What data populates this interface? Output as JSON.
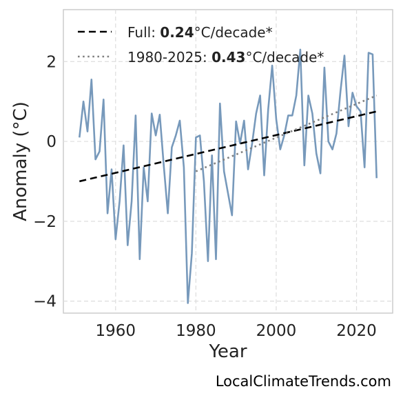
{
  "chart_data": {
    "type": "line",
    "xlabel": "Year",
    "ylabel": "Anomaly (°C)",
    "xlim": [
      1947,
      2029
    ],
    "ylim": [
      -4.3,
      3.3
    ],
    "x_ticks": [
      1960,
      1980,
      2000,
      2020
    ],
    "y_ticks": [
      -4,
      -2,
      0,
      2
    ],
    "y_tick_labels": [
      "−4",
      "−2",
      "0",
      "2"
    ],
    "grid": true,
    "legend_position": "top-left",
    "series": [
      {
        "x": [
          1951,
          1952,
          1953,
          1954,
          1955,
          1956,
          1957,
          1958,
          1959,
          1960,
          1961,
          1962,
          1963,
          1964,
          1965,
          1966,
          1967,
          1968,
          1969,
          1970,
          1971,
          1972,
          1973,
          1974,
          1975,
          1976,
          1977,
          1978,
          1979,
          1980,
          1981,
          1982,
          1983,
          1984,
          1985,
          1986,
          1987,
          1988,
          1989,
          1990,
          1991,
          1992,
          1993,
          1994,
          1995,
          1996,
          1997,
          1998,
          1999,
          2000,
          2001,
          2002,
          2003,
          2004,
          2005,
          2006,
          2007,
          2008,
          2009,
          2010,
          2011,
          2012,
          2013,
          2014,
          2015,
          2016,
          2017,
          2018,
          2019,
          2020,
          2021,
          2022,
          2023,
          2024,
          2025
        ],
        "values": [
          0.1,
          1.0,
          0.25,
          1.55,
          -0.45,
          -0.25,
          1.05,
          -1.8,
          -0.7,
          -2.45,
          -1.5,
          -0.1,
          -2.6,
          -1.5,
          0.65,
          -2.95,
          -0.65,
          -1.5,
          0.7,
          0.15,
          0.67,
          -0.6,
          -1.8,
          -0.15,
          0.15,
          0.52,
          -0.65,
          -4.05,
          -2.8,
          0.1,
          0.15,
          -1.0,
          -3.0,
          -0.35,
          -2.95,
          0.95,
          -0.75,
          -1.3,
          -1.85,
          0.5,
          -0.05,
          0.52,
          -0.7,
          -0.05,
          0.7,
          1.15,
          -0.85,
          0.8,
          1.9,
          0.55,
          -0.2,
          0.15,
          0.65,
          0.65,
          1.15,
          2.3,
          -0.6,
          1.15,
          0.7,
          -0.3,
          -0.8,
          1.85,
          0.0,
          -0.2,
          0.2,
          1.25,
          2.15,
          0.38,
          1.22,
          0.88,
          0.75,
          -0.65,
          2.22,
          2.18,
          -0.92
        ],
        "color": "#7799bb"
      }
    ],
    "trends": [
      {
        "label_prefix": "Full: ",
        "label_value": "0.24",
        "label_suffix": "°C/decade*",
        "x": [
          1951,
          2025
        ],
        "y": [
          -1.0,
          0.75
        ],
        "style": "dashed",
        "color": "#000000"
      },
      {
        "label_prefix": "1980-2025: ",
        "label_value": "0.43",
        "label_suffix": "°C/decade*",
        "x": [
          1980,
          2025
        ],
        "y": [
          -0.75,
          1.15
        ],
        "style": "dotted",
        "color": "#808080"
      }
    ]
  },
  "footer": {
    "site": "LocalClimateTrends.com"
  }
}
